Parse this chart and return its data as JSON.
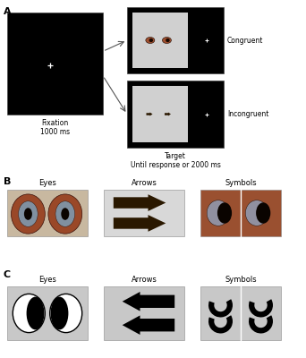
{
  "panel_A_label": "A",
  "panel_B_label": "B",
  "panel_C_label": "C",
  "fixation_label": "Fixation\n1000 ms",
  "target_label": "Target\nUntil response or 2000 ms",
  "congruent_label": "Congruent",
  "incongruent_label": "Incongruent",
  "eyes_label": "Eyes",
  "arrows_label": "Arrows",
  "symbols_label": "Symbols",
  "bg_white": "#ffffff",
  "bg_black": "#000000",
  "bg_gray_light": "#d0d0d0",
  "bg_gray_med": "#c0c0c0",
  "eye_brown": "#a05030",
  "eye_iris": "#7090a0",
  "eye_dark": "#1a0800",
  "arrow_dark": "#2a1800",
  "sym_brown": "#9a5030"
}
